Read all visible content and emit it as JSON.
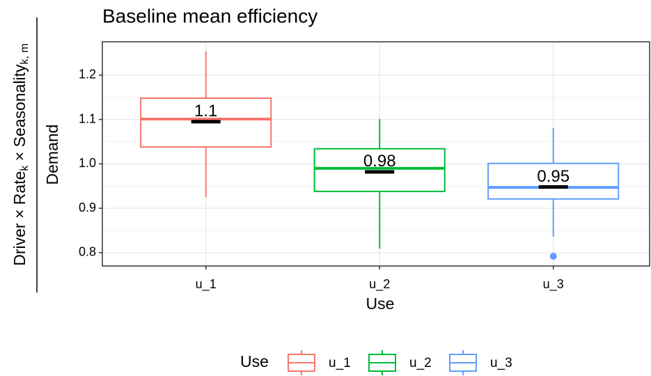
{
  "chart_data": {
    "type": "box",
    "title": "Baseline mean efficiency",
    "x_label": "Use",
    "y_label": "Demand",
    "y_label_outer": [
      "Driver × Rate",
      "k",
      " × Seasonality",
      "k, m"
    ],
    "legend_title": "Use",
    "categories": [
      "u_1",
      "u_2",
      "u_3"
    ],
    "colors": [
      "#F8766D",
      "#00BA38",
      "#619CFF"
    ],
    "whisker_low": [
      0.925,
      0.809,
      0.836
    ],
    "q1": [
      1.038,
      0.938,
      0.921
    ],
    "median": [
      1.101,
      0.99,
      0.947
    ],
    "q3": [
      1.148,
      1.034,
      1.001
    ],
    "whisker_high": [
      1.253,
      1.101,
      1.081
    ],
    "outliers": [
      [],
      [],
      [
        0.792
      ]
    ],
    "means": [
      1.095,
      0.982,
      0.948
    ],
    "value_labels": [
      "1.1",
      "0.98",
      "0.95"
    ],
    "ylim": [
      0.77,
      1.275
    ],
    "yticks": [
      0.8,
      0.9,
      {
        "value": 1.0,
        "label": "1.0"
      },
      1.1,
      1.2
    ],
    "grid": true,
    "legend_position": "bottom"
  }
}
